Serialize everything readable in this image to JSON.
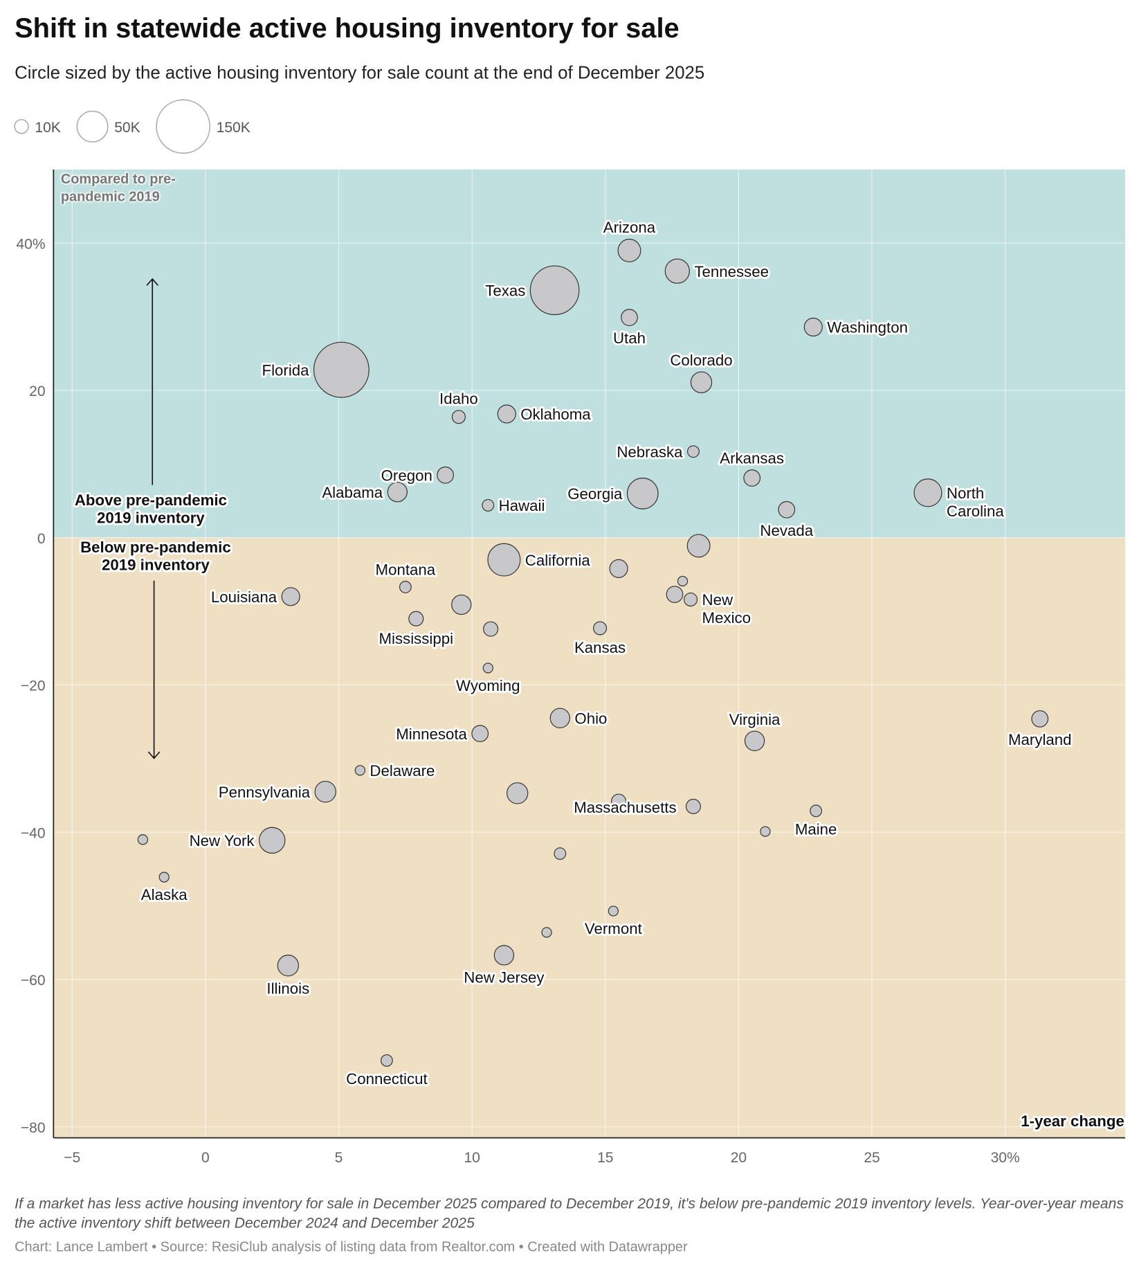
{
  "title": "Shift in statewide active housing inventory for sale",
  "subtitle": "Circle sized by the active housing inventory for sale count at the end of December 2025",
  "footnote": "If a market has less active housing inventory for sale in December 2025 compared to December 2019, it's below pre-pandemic 2019 inventory levels. Year-over-year means the active inventory shift between December 2024 and December 2025",
  "credit": "Chart: Lance Lambert • Source: ResiClub analysis of listing data from Realtor.com • Created with Datawrapper",
  "colors": {
    "above": "#bfe0de",
    "below": "#efe0c3",
    "bubble": "#c8c8ca",
    "above_text": "#5fb3a8",
    "below_text": "#d6b36a"
  },
  "chart_data": {
    "type": "scatter",
    "xlabel": "1-year change",
    "ylabel": "Compared to pre-pandemic 2019",
    "xlim": [
      -5.7,
      34.5
    ],
    "ylim": [
      -81.5,
      50
    ],
    "x_ticks": [
      {
        "v": -5,
        "label": "−5"
      },
      {
        "v": 0,
        "label": "0"
      },
      {
        "v": 5,
        "label": "5"
      },
      {
        "v": 10,
        "label": "10"
      },
      {
        "v": 15,
        "label": "15"
      },
      {
        "v": 20,
        "label": "20"
      },
      {
        "v": 25,
        "label": "25"
      },
      {
        "v": 30,
        "label": "30%"
      }
    ],
    "y_ticks": [
      {
        "v": 40,
        "label": "40%"
      },
      {
        "v": 20,
        "label": "20"
      },
      {
        "v": 0,
        "label": "0"
      },
      {
        "v": -20,
        "label": "−20"
      },
      {
        "v": -40,
        "label": "−40"
      },
      {
        "v": -60,
        "label": "−60"
      },
      {
        "v": -80,
        "label": "−80"
      }
    ],
    "size_legend": [
      {
        "value": 10,
        "label": "10K"
      },
      {
        "value": 50,
        "label": "50K"
      },
      {
        "value": 150,
        "label": "150K"
      }
    ],
    "annotations": {
      "above": "Above pre-pandemic 2019 inventory",
      "below": "Below pre-pandemic 2019 inventory"
    },
    "points": [
      {
        "name": "Arizona",
        "x": 15.9,
        "y": 39.0,
        "inventory_k": 27,
        "label_pos": "top"
      },
      {
        "name": "Tennessee",
        "x": 17.7,
        "y": 36.2,
        "inventory_k": 31,
        "label_pos": "right"
      },
      {
        "name": "Texas",
        "x": 13.1,
        "y": 33.6,
        "inventory_k": 125,
        "label_pos": "left"
      },
      {
        "name": "Utah",
        "x": 15.9,
        "y": 29.9,
        "inventory_k": 14,
        "label_pos": "bottom"
      },
      {
        "name": "Washington",
        "x": 22.8,
        "y": 28.6,
        "inventory_k": 17,
        "label_pos": "right"
      },
      {
        "name": "Colorado",
        "x": 18.6,
        "y": 21.1,
        "inventory_k": 23,
        "label_pos": "top"
      },
      {
        "name": "Florida",
        "x": 5.1,
        "y": 22.8,
        "inventory_k": 160,
        "label_pos": "left"
      },
      {
        "name": "Idaho",
        "x": 9.5,
        "y": 16.4,
        "inventory_k": 9,
        "label_pos": "top"
      },
      {
        "name": "Oklahoma",
        "x": 11.3,
        "y": 16.8,
        "inventory_k": 17,
        "label_pos": "right"
      },
      {
        "name": "Nebraska",
        "x": 18.3,
        "y": 11.7,
        "inventory_k": 7,
        "label_pos": "left"
      },
      {
        "name": "Arkansas",
        "x": 20.5,
        "y": 8.1,
        "inventory_k": 14,
        "label_pos": "top"
      },
      {
        "name": "Oregon",
        "x": 9.0,
        "y": 8.5,
        "inventory_k": 14,
        "label_pos": "left"
      },
      {
        "name": "Alabama",
        "x": 7.2,
        "y": 6.2,
        "inventory_k": 20,
        "label_pos": "left"
      },
      {
        "name": "Hawaii",
        "x": 10.6,
        "y": 4.4,
        "inventory_k": 7,
        "label_pos": "right"
      },
      {
        "name": "Georgia",
        "x": 16.4,
        "y": 6.0,
        "inventory_k": 50,
        "label_pos": "left"
      },
      {
        "name": "North Carolina",
        "x": 27.1,
        "y": 6.1,
        "inventory_k": 40,
        "label_pos": "right-wrap"
      },
      {
        "name": "Nevada",
        "x": 21.8,
        "y": 3.8,
        "inventory_k": 14,
        "label_pos": "bottom"
      },
      {
        "name": "",
        "x": 18.5,
        "y": -1.1,
        "inventory_k": 27,
        "label_pos": "none"
      },
      {
        "name": "California",
        "x": 11.2,
        "y": -3.0,
        "inventory_k": 55,
        "label_pos": "right"
      },
      {
        "name": "",
        "x": 15.5,
        "y": -4.2,
        "inventory_k": 17,
        "label_pos": "none"
      },
      {
        "name": "Montana",
        "x": 7.5,
        "y": -6.7,
        "inventory_k": 7,
        "label_pos": "top"
      },
      {
        "name": "",
        "x": 17.9,
        "y": -5.9,
        "inventory_k": 5,
        "label_pos": "none"
      },
      {
        "name": "",
        "x": 17.6,
        "y": -7.7,
        "inventory_k": 14,
        "label_pos": "none"
      },
      {
        "name": "New Mexico",
        "x": 18.2,
        "y": -8.4,
        "inventory_k": 9,
        "label_pos": "right-wrap"
      },
      {
        "name": "Louisiana",
        "x": 3.2,
        "y": -8.0,
        "inventory_k": 17,
        "label_pos": "left"
      },
      {
        "name": "",
        "x": 9.6,
        "y": -9.1,
        "inventory_k": 20,
        "label_pos": "none"
      },
      {
        "name": "Mississippi",
        "x": 7.9,
        "y": -11.0,
        "inventory_k": 11,
        "label_pos": "bottom"
      },
      {
        "name": "",
        "x": 10.7,
        "y": -12.4,
        "inventory_k": 11,
        "label_pos": "none"
      },
      {
        "name": "Kansas",
        "x": 14.8,
        "y": -12.3,
        "inventory_k": 9,
        "label_pos": "bottom"
      },
      {
        "name": "Wyoming",
        "x": 10.6,
        "y": -17.7,
        "inventory_k": 5,
        "label_pos": "bottom"
      },
      {
        "name": "Ohio",
        "x": 13.3,
        "y": -24.5,
        "inventory_k": 20,
        "label_pos": "right"
      },
      {
        "name": "Maryland",
        "x": 31.3,
        "y": -24.6,
        "inventory_k": 14,
        "label_pos": "bottom"
      },
      {
        "name": "Minnesota",
        "x": 10.3,
        "y": -26.6,
        "inventory_k": 14,
        "label_pos": "left"
      },
      {
        "name": "Virginia",
        "x": 20.6,
        "y": -27.6,
        "inventory_k": 20,
        "label_pos": "top"
      },
      {
        "name": "Delaware",
        "x": 5.8,
        "y": -31.6,
        "inventory_k": 5,
        "label_pos": "right"
      },
      {
        "name": "Pennsylvania",
        "x": 4.5,
        "y": -34.5,
        "inventory_k": 23,
        "label_pos": "left"
      },
      {
        "name": "",
        "x": 11.7,
        "y": -34.7,
        "inventory_k": 23,
        "label_pos": "none"
      },
      {
        "name": "Massachusetts",
        "x": 15.5,
        "y": -35.8,
        "inventory_k": 11,
        "label_pos": "center"
      },
      {
        "name": "",
        "x": 18.3,
        "y": -36.5,
        "inventory_k": 11,
        "label_pos": "none"
      },
      {
        "name": "Maine",
        "x": 22.9,
        "y": -37.1,
        "inventory_k": 7,
        "label_pos": "bottom"
      },
      {
        "name": "",
        "x": 21.0,
        "y": -39.9,
        "inventory_k": 5,
        "label_pos": "none"
      },
      {
        "name": "New York",
        "x": 2.5,
        "y": -41.1,
        "inventory_k": 35,
        "label_pos": "left"
      },
      {
        "name": "",
        "x": -2.35,
        "y": -41.0,
        "inventory_k": 5,
        "label_pos": "none"
      },
      {
        "name": "Alaska",
        "x": -1.55,
        "y": -46.1,
        "inventory_k": 5,
        "label_pos": "bottom"
      },
      {
        "name": "",
        "x": 13.3,
        "y": -42.9,
        "inventory_k": 7,
        "label_pos": "none"
      },
      {
        "name": "Vermont",
        "x": 15.3,
        "y": -50.7,
        "inventory_k": 5,
        "label_pos": "bottom"
      },
      {
        "name": "",
        "x": 12.8,
        "y": -53.6,
        "inventory_k": 5,
        "label_pos": "none"
      },
      {
        "name": "New Jersey",
        "x": 11.2,
        "y": -56.7,
        "inventory_k": 20,
        "label_pos": "bottom"
      },
      {
        "name": "Illinois",
        "x": 3.1,
        "y": -58.1,
        "inventory_k": 23,
        "label_pos": "bottom"
      },
      {
        "name": "Connecticut",
        "x": 6.8,
        "y": -71.0,
        "inventory_k": 7,
        "label_pos": "bottom"
      }
    ]
  }
}
